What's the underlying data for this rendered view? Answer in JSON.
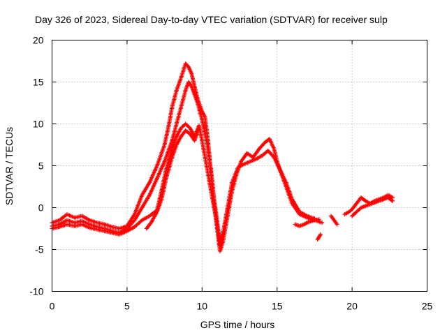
{
  "chart_data": {
    "type": "scatter",
    "title": "Day 326 of 2023, Sidereal Day-to-day VTEC variation (SDTVAR) for receiver sulp",
    "xlabel": "GPS time / hours",
    "ylabel": "SDTVAR / TECUs",
    "xlim": [
      0,
      25
    ],
    "ylim": [
      -10,
      20
    ],
    "xticks": [
      0,
      5,
      10,
      15,
      20,
      25
    ],
    "yticks": [
      -10,
      -5,
      0,
      5,
      10,
      15,
      20
    ],
    "xtick_labels": [
      "0",
      "5",
      "10",
      "15",
      "20",
      "25"
    ],
    "ytick_labels": [
      "-10",
      "-5",
      "0",
      "5",
      "10",
      "15",
      "20"
    ],
    "grid": true,
    "marker": "plus",
    "series_color": "#ff0000",
    "series": [
      {
        "name": "track-a",
        "x": [
          0.0,
          0.5,
          1.0,
          1.5,
          2.0,
          2.5,
          3.0,
          3.5,
          4.0,
          4.5,
          5.0,
          5.5,
          6.0,
          6.5,
          7.0,
          7.5,
          7.8,
          8.0,
          8.3,
          8.6,
          8.9,
          9.1,
          9.3,
          9.5,
          9.7,
          10.0,
          10.2,
          10.4,
          10.6,
          10.8,
          11.0,
          11.2,
          11.4,
          11.6,
          11.8,
          12.0,
          12.3,
          12.6,
          13.0,
          13.4,
          13.8,
          14.2,
          14.5,
          14.8,
          15.0,
          15.3,
          15.6,
          16.0,
          16.5,
          17.0,
          17.5,
          18.0
        ],
        "y": [
          -1.8,
          -1.5,
          -0.8,
          -1.2,
          -1.0,
          -1.5,
          -1.8,
          -2.0,
          -2.3,
          -2.5,
          -2.2,
          -0.8,
          1.5,
          3.0,
          5.0,
          7.5,
          10.0,
          12.0,
          14.0,
          15.5,
          17.2,
          16.8,
          16.0,
          14.5,
          13.0,
          11.5,
          10.8,
          8.0,
          4.0,
          0.5,
          -2.5,
          -5.2,
          -4.0,
          -2.0,
          0.0,
          2.0,
          4.0,
          5.5,
          6.5,
          6.0,
          7.0,
          7.8,
          8.2,
          7.0,
          5.5,
          4.0,
          2.5,
          0.5,
          -0.8,
          -1.2,
          -1.5,
          -1.8
        ]
      },
      {
        "name": "track-b",
        "x": [
          0.0,
          0.5,
          1.0,
          1.5,
          2.0,
          2.5,
          3.0,
          3.5,
          4.0,
          4.5,
          5.0,
          5.5,
          6.0,
          6.5,
          7.0,
          7.5,
          8.0,
          8.3,
          8.6,
          8.9,
          9.1,
          9.3,
          9.5,
          9.7,
          10.0,
          10.3,
          10.6,
          10.8,
          11.0,
          11.2,
          11.4,
          11.6,
          11.8,
          12.0,
          12.4,
          12.8,
          13.2,
          13.6,
          14.0,
          14.4,
          14.8,
          15.2,
          15.6,
          16.0,
          16.5,
          17.0,
          17.5
        ],
        "y": [
          -2.2,
          -2.0,
          -1.5,
          -1.8,
          -1.6,
          -2.0,
          -2.3,
          -2.5,
          -2.8,
          -3.0,
          -2.5,
          -1.5,
          0.0,
          1.5,
          3.5,
          5.5,
          8.0,
          10.0,
          12.0,
          14.0,
          15.0,
          14.5,
          13.5,
          12.5,
          10.5,
          8.0,
          4.5,
          1.0,
          -1.5,
          -4.5,
          -3.0,
          -1.0,
          1.0,
          3.0,
          4.8,
          5.2,
          5.5,
          5.8,
          6.2,
          6.8,
          6.0,
          4.5,
          3.0,
          1.0,
          -0.5,
          -1.0,
          -1.3
        ]
      },
      {
        "name": "track-c",
        "x": [
          0.0,
          0.5,
          1.0,
          1.5,
          2.0,
          2.5,
          3.0,
          3.5,
          4.0,
          4.5,
          5.0,
          5.5,
          6.0,
          6.5,
          7.0,
          7.3,
          7.6,
          8.0,
          8.3,
          8.6,
          8.9,
          9.2,
          9.5,
          9.8,
          10.0,
          10.2,
          10.4,
          10.6,
          10.8,
          11.0,
          11.2,
          11.4
        ],
        "y": [
          -2.5,
          -2.3,
          -2.0,
          -2.2,
          -2.0,
          -2.4,
          -2.6,
          -2.8,
          -3.0,
          -3.2,
          -2.8,
          -2.3,
          -1.5,
          -1.0,
          -0.3,
          2.0,
          4.5,
          7.0,
          8.5,
          9.5,
          10.0,
          9.5,
          8.5,
          9.8,
          8.0,
          6.0,
          4.0,
          2.0,
          0.0,
          -2.0,
          -4.0,
          -3.0
        ]
      },
      {
        "name": "track-d",
        "x": [
          6.3,
          6.6,
          7.0,
          7.3,
          7.6,
          8.0,
          8.3,
          8.6,
          8.9,
          9.2,
          9.5,
          9.8
        ],
        "y": [
          -2.5,
          -1.8,
          -0.5,
          1.0,
          3.5,
          6.0,
          7.5,
          8.5,
          9.2,
          8.8,
          8.0,
          9.5
        ]
      },
      {
        "name": "track-e",
        "x": [
          16.2,
          16.5,
          16.8,
          17.0,
          17.3,
          17.5,
          17.8
        ],
        "y": [
          -2.0,
          -2.2,
          -2.0,
          -1.8,
          -1.6,
          -1.5,
          -1.4
        ]
      },
      {
        "name": "track-f",
        "x": [
          17.7,
          17.9
        ],
        "y": [
          -3.8,
          -3.2
        ]
      },
      {
        "name": "track-g",
        "x": [
          18.6,
          18.8,
          19.0
        ],
        "y": [
          -1.0,
          -1.5,
          -2.0
        ]
      },
      {
        "name": "track-h",
        "x": [
          19.5,
          19.8,
          20.0,
          20.3,
          20.6,
          20.9,
          21.2,
          21.5,
          21.8,
          22.1,
          22.4,
          22.7
        ],
        "y": [
          -0.8,
          -0.5,
          -0.2,
          0.5,
          1.2,
          0.8,
          0.5,
          0.8,
          1.0,
          1.2,
          1.5,
          1.2
        ]
      },
      {
        "name": "track-i",
        "x": [
          20.0,
          20.3,
          20.6,
          20.9,
          21.2,
          21.5,
          21.8,
          22.1,
          22.4,
          22.7
        ],
        "y": [
          -1.0,
          -0.5,
          0.0,
          0.2,
          0.4,
          0.6,
          0.8,
          1.0,
          1.2,
          0.8
        ]
      }
    ]
  }
}
